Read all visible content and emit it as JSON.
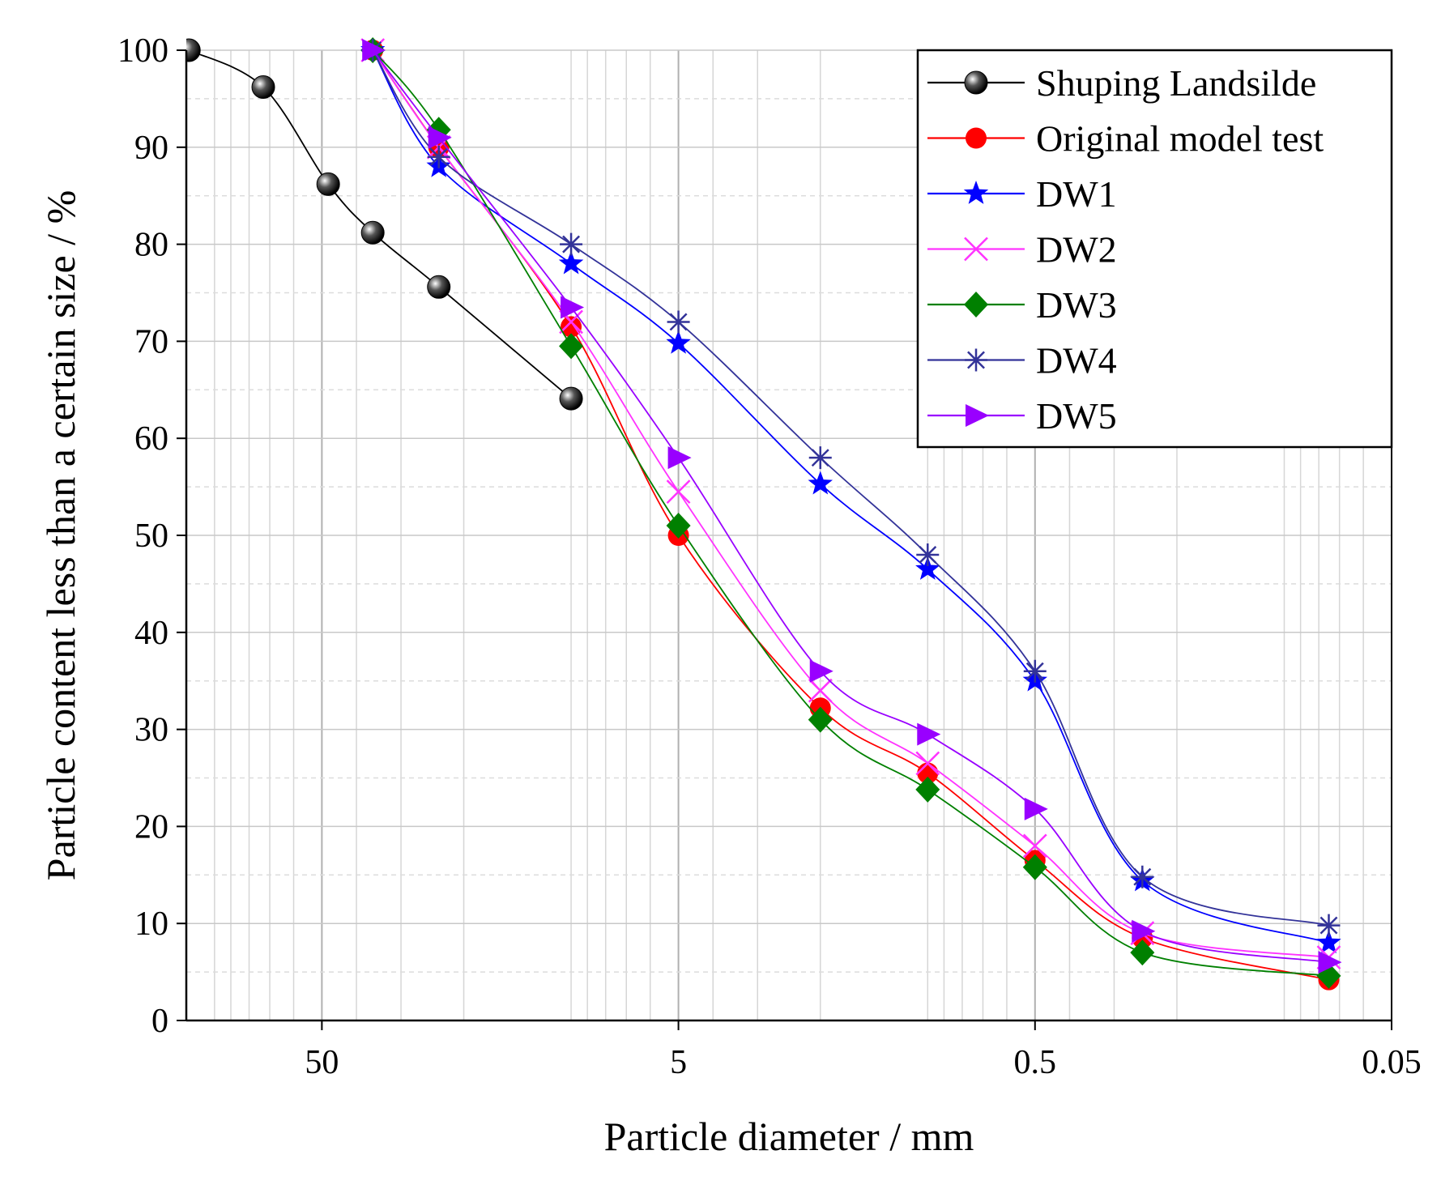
{
  "chart_data": {
    "type": "line",
    "xscale": "log",
    "x_reversed": true,
    "xlabel": "Particle diameter / mm",
    "ylabel": "Particle content less than a certain size / %",
    "xlim": [
      120,
      0.05
    ],
    "ylim": [
      0,
      100
    ],
    "xticks": [
      50,
      5,
      0.5,
      0.05
    ],
    "xtick_labels": [
      "50",
      "5",
      "0.5",
      "0.05"
    ],
    "yticks": [
      0,
      10,
      20,
      30,
      40,
      50,
      60,
      70,
      80,
      90,
      100
    ],
    "ytick_labels": [
      "0",
      "10",
      "20",
      "30",
      "40",
      "50",
      "60",
      "70",
      "80",
      "90",
      "100"
    ],
    "grid": true,
    "legend_position": "top-right",
    "series": [
      {
        "name": "Shuping Landsilde",
        "color": "#000000",
        "marker": "sphere",
        "x": [
          118,
          73,
          48,
          36,
          23.5,
          10
        ],
        "y": [
          100,
          96.2,
          86.2,
          81.2,
          75.6,
          64.1
        ]
      },
      {
        "name": "Original model test",
        "color": "#ff0000",
        "marker": "circle",
        "x": [
          36,
          23.5,
          10,
          5,
          2,
          1,
          0.5,
          0.25,
          0.075
        ],
        "y": [
          100,
          90,
          71.5,
          50,
          32.2,
          25.5,
          16.5,
          8.5,
          4.2
        ]
      },
      {
        "name": "DW1",
        "color": "#0000ff",
        "marker": "star",
        "x": [
          36,
          23.5,
          10,
          5,
          2,
          1,
          0.5,
          0.25,
          0.075
        ],
        "y": [
          100,
          88,
          78,
          69.8,
          55.3,
          46.5,
          35,
          14.4,
          8
        ]
      },
      {
        "name": "DW2",
        "color": "#ff33ff",
        "marker": "x",
        "x": [
          36,
          23.5,
          10,
          5,
          2,
          1,
          0.5,
          0.25,
          0.075
        ],
        "y": [
          100,
          90,
          72,
          54.5,
          34,
          26.5,
          18,
          9,
          6.5
        ]
      },
      {
        "name": "DW3",
        "color": "#008000",
        "marker": "diamond",
        "x": [
          36,
          23.5,
          10,
          5,
          2,
          1,
          0.5,
          0.25,
          0.075
        ],
        "y": [
          100,
          91.8,
          69.5,
          51,
          31,
          23.8,
          15.8,
          7,
          4.6
        ]
      },
      {
        "name": "DW4",
        "color": "#333399",
        "marker": "asterisk",
        "x": [
          36,
          23.5,
          10,
          5,
          2,
          1,
          0.5,
          0.25,
          0.075
        ],
        "y": [
          100,
          89,
          80,
          72,
          58,
          48,
          36,
          14.8,
          9.8
        ]
      },
      {
        "name": "DW5",
        "color": "#9900ff",
        "marker": "triangle-right",
        "x": [
          36,
          23.5,
          10,
          5,
          2,
          1,
          0.5,
          0.25,
          0.075
        ],
        "y": [
          100,
          91,
          73.5,
          58,
          36,
          29.5,
          21.8,
          9.2,
          6
        ]
      }
    ]
  }
}
